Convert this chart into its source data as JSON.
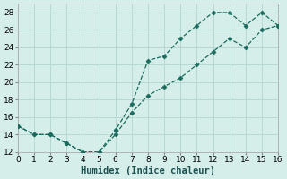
{
  "xlabel": "Humidex (Indice chaleur)",
  "bg_color": "#d6eeea",
  "line_color": "#1a6b5e",
  "grid_color": "#b8d8d4",
  "line1_x": [
    0,
    1,
    2,
    3,
    4,
    5,
    6,
    7,
    8,
    9,
    10,
    11,
    12,
    13,
    14,
    15,
    16
  ],
  "line1_y": [
    15,
    14,
    14,
    13,
    12,
    12,
    14.5,
    17.5,
    22.5,
    23,
    25,
    26.5,
    28,
    28,
    26.5,
    28,
    26.5
  ],
  "line2_x": [
    0,
    1,
    2,
    3,
    4,
    5,
    6,
    7,
    8,
    9,
    10,
    11,
    12,
    13,
    14,
    15,
    16
  ],
  "line2_y": [
    15,
    14,
    14,
    13,
    12,
    12,
    14.0,
    16.5,
    18.5,
    19.5,
    20.5,
    22,
    23.5,
    25,
    24,
    26,
    26.5
  ],
  "xlim": [
    0,
    16
  ],
  "ylim": [
    12,
    29
  ],
  "yticks": [
    12,
    14,
    16,
    18,
    20,
    22,
    24,
    26,
    28
  ],
  "xticks": [
    0,
    1,
    2,
    3,
    4,
    5,
    6,
    7,
    8,
    9,
    10,
    11,
    12,
    13,
    14,
    15,
    16
  ],
  "tick_fontsize": 6.5,
  "xlabel_fontsize": 7.5
}
